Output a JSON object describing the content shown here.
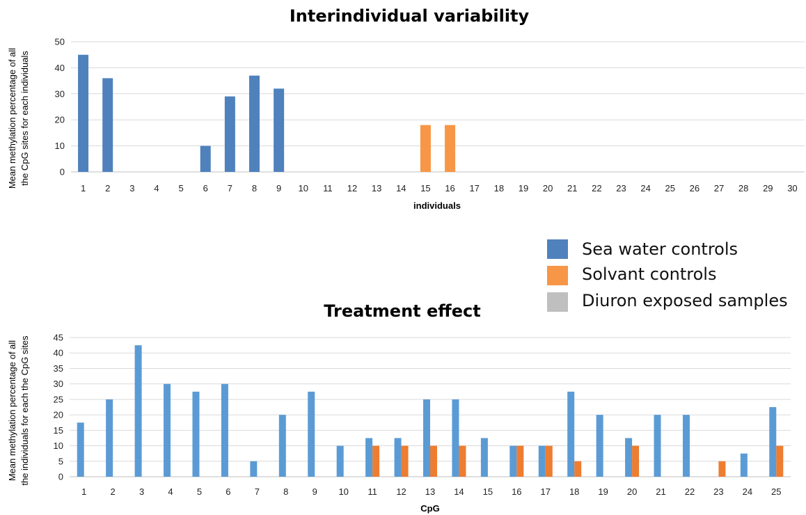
{
  "legend": {
    "items": [
      {
        "label": "Sea water controls",
        "color": "#4f81bd"
      },
      {
        "label": "Solvant controls",
        "color": "#f79646"
      },
      {
        "label": "Diuron exposed samples",
        "color": "#bfbfbf"
      }
    ]
  },
  "chart_data": [
    {
      "type": "bar",
      "title": "Interindividual variability",
      "xlabel": "individuals",
      "ylabel_lines": [
        "Mean methylation percentage of all",
        "the CpG sites for each individuals"
      ],
      "ylim": [
        0,
        50
      ],
      "yticks": [
        0,
        10,
        20,
        30,
        40,
        50
      ],
      "grid": true,
      "categories": [
        "1",
        "2",
        "3",
        "4",
        "5",
        "6",
        "7",
        "8",
        "9",
        "10",
        "11",
        "12",
        "13",
        "14",
        "15",
        "16",
        "17",
        "18",
        "19",
        "20",
        "21",
        "22",
        "23",
        "24",
        "25",
        "26",
        "27",
        "28",
        "29",
        "30"
      ],
      "series": [
        {
          "name": "Sea water controls",
          "color": "#4f81bd",
          "values": [
            45,
            36,
            0,
            0,
            0,
            10,
            29,
            37,
            32,
            0,
            0,
            0,
            0,
            0,
            0,
            0,
            0,
            0,
            0,
            0,
            0,
            0,
            0,
            0,
            0,
            0,
            0,
            0,
            0,
            0
          ]
        },
        {
          "name": "Solvant controls",
          "color": "#f79646",
          "values": [
            0,
            0,
            0,
            0,
            0,
            0,
            0,
            0,
            0,
            0,
            0,
            0,
            0,
            0,
            18,
            18,
            0,
            0,
            0,
            0,
            0,
            0,
            0,
            0,
            0,
            0,
            0,
            0,
            0,
            0
          ]
        }
      ]
    },
    {
      "type": "bar",
      "title": "Treatment effect",
      "xlabel": "CpG",
      "ylabel_lines": [
        "Mean methylation percentage of all",
        "the individuals for each the CpG sites"
      ],
      "ylim": [
        0,
        45
      ],
      "yticks": [
        0,
        5,
        10,
        15,
        20,
        25,
        30,
        35,
        40,
        45
      ],
      "grid": true,
      "categories": [
        "1",
        "2",
        "3",
        "4",
        "5",
        "6",
        "7",
        "8",
        "9",
        "10",
        "11",
        "12",
        "13",
        "14",
        "15",
        "16",
        "17",
        "18",
        "19",
        "20",
        "21",
        "22",
        "23",
        "24",
        "25"
      ],
      "series": [
        {
          "name": "Sea water controls",
          "color": "#5b9bd5",
          "values": [
            17.5,
            25,
            42.5,
            30,
            27.5,
            30,
            5,
            20,
            27.5,
            10,
            12.5,
            12.5,
            25,
            25,
            12.5,
            10,
            10,
            27.5,
            20,
            12.5,
            20,
            20,
            0,
            7.5,
            22.5
          ]
        },
        {
          "name": "Solvant controls",
          "color": "#ed7d31",
          "values": [
            0,
            0,
            0,
            0,
            0,
            0,
            0,
            0,
            0,
            0,
            10,
            10,
            10,
            10,
            0,
            10,
            10,
            5,
            0,
            10,
            0,
            0,
            5,
            0,
            10
          ]
        }
      ]
    }
  ]
}
